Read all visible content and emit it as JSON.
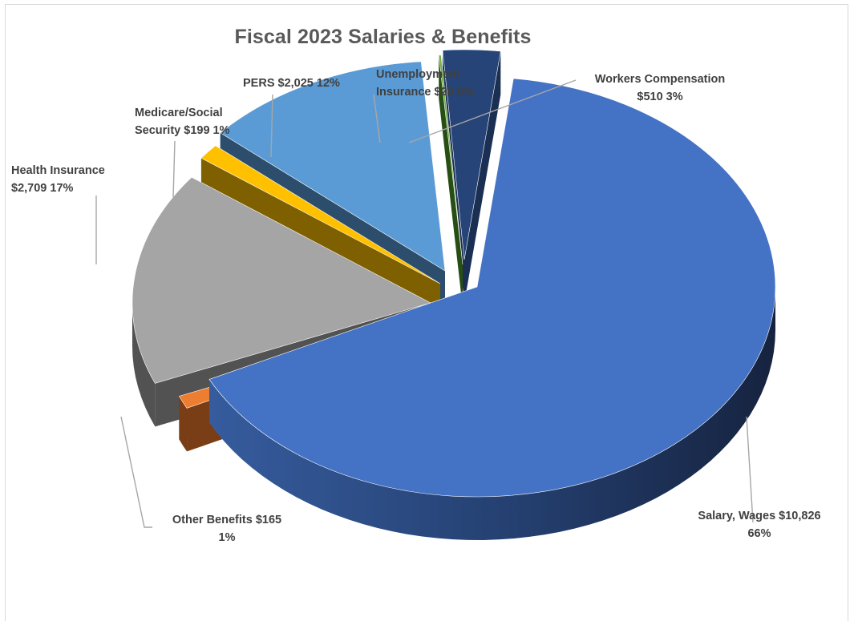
{
  "chart_data": {
    "type": "pie",
    "title": "Fiscal 2023 Salaries & Benefits",
    "slices": [
      {
        "name": "Salary, Wages",
        "value": 10826,
        "value_label": "$10,826",
        "percent_label": "66%",
        "color": "#4472C4",
        "side_color": "#223A66"
      },
      {
        "name": "Other Benefits",
        "value": 165,
        "value_label": "$165",
        "percent_label": "1%",
        "color": "#ED7D31",
        "side_color": "#7A3E16"
      },
      {
        "name": "Health Insurance",
        "value": 2709,
        "value_label": "$2,709",
        "percent_label": "17%",
        "color": "#A5A5A5",
        "side_color": "#525252"
      },
      {
        "name": "Medicare/Social Security",
        "value": 199,
        "value_label": "$199",
        "percent_label": "1%",
        "color": "#FFC000",
        "side_color": "#7F6000"
      },
      {
        "name": "PERS",
        "value": 2025,
        "value_label": "$2,025",
        "percent_label": "12%",
        "color": "#5B9BD5",
        "side_color": "#2C4D6B"
      },
      {
        "name": "Unemployment Insurance",
        "value": 20,
        "value_label": "$20",
        "percent_label": "0%",
        "color": "#70AD47",
        "side_color": "#274E13"
      },
      {
        "name": "Workers Compensation",
        "value": 510,
        "value_label": "$510",
        "percent_label": "3%",
        "color": "#264478",
        "side_color": "#1A2F52"
      }
    ],
    "exploded": true,
    "three_d": true,
    "legend": "none",
    "data_labels": "category, value, percent with leader lines"
  },
  "labels": {
    "salary_line1": "Salary, Wages  $10,826",
    "salary_line2": "66%",
    "other_line1": "Other Benefits  $165",
    "other_line2": "1%",
    "health_line1": "Health Insurance",
    "health_line2": "$2,709  17%",
    "medicare_line1": "Medicare/Social",
    "medicare_line2": "Security  $199  1%",
    "pers_line1": "PERS  $2,025  12%",
    "unemp_line1": "Unemployment",
    "unemp_line2": "Insurance  $20  0%",
    "workers_line1": "Workers Compensation",
    "workers_line2": "$510  3%"
  }
}
